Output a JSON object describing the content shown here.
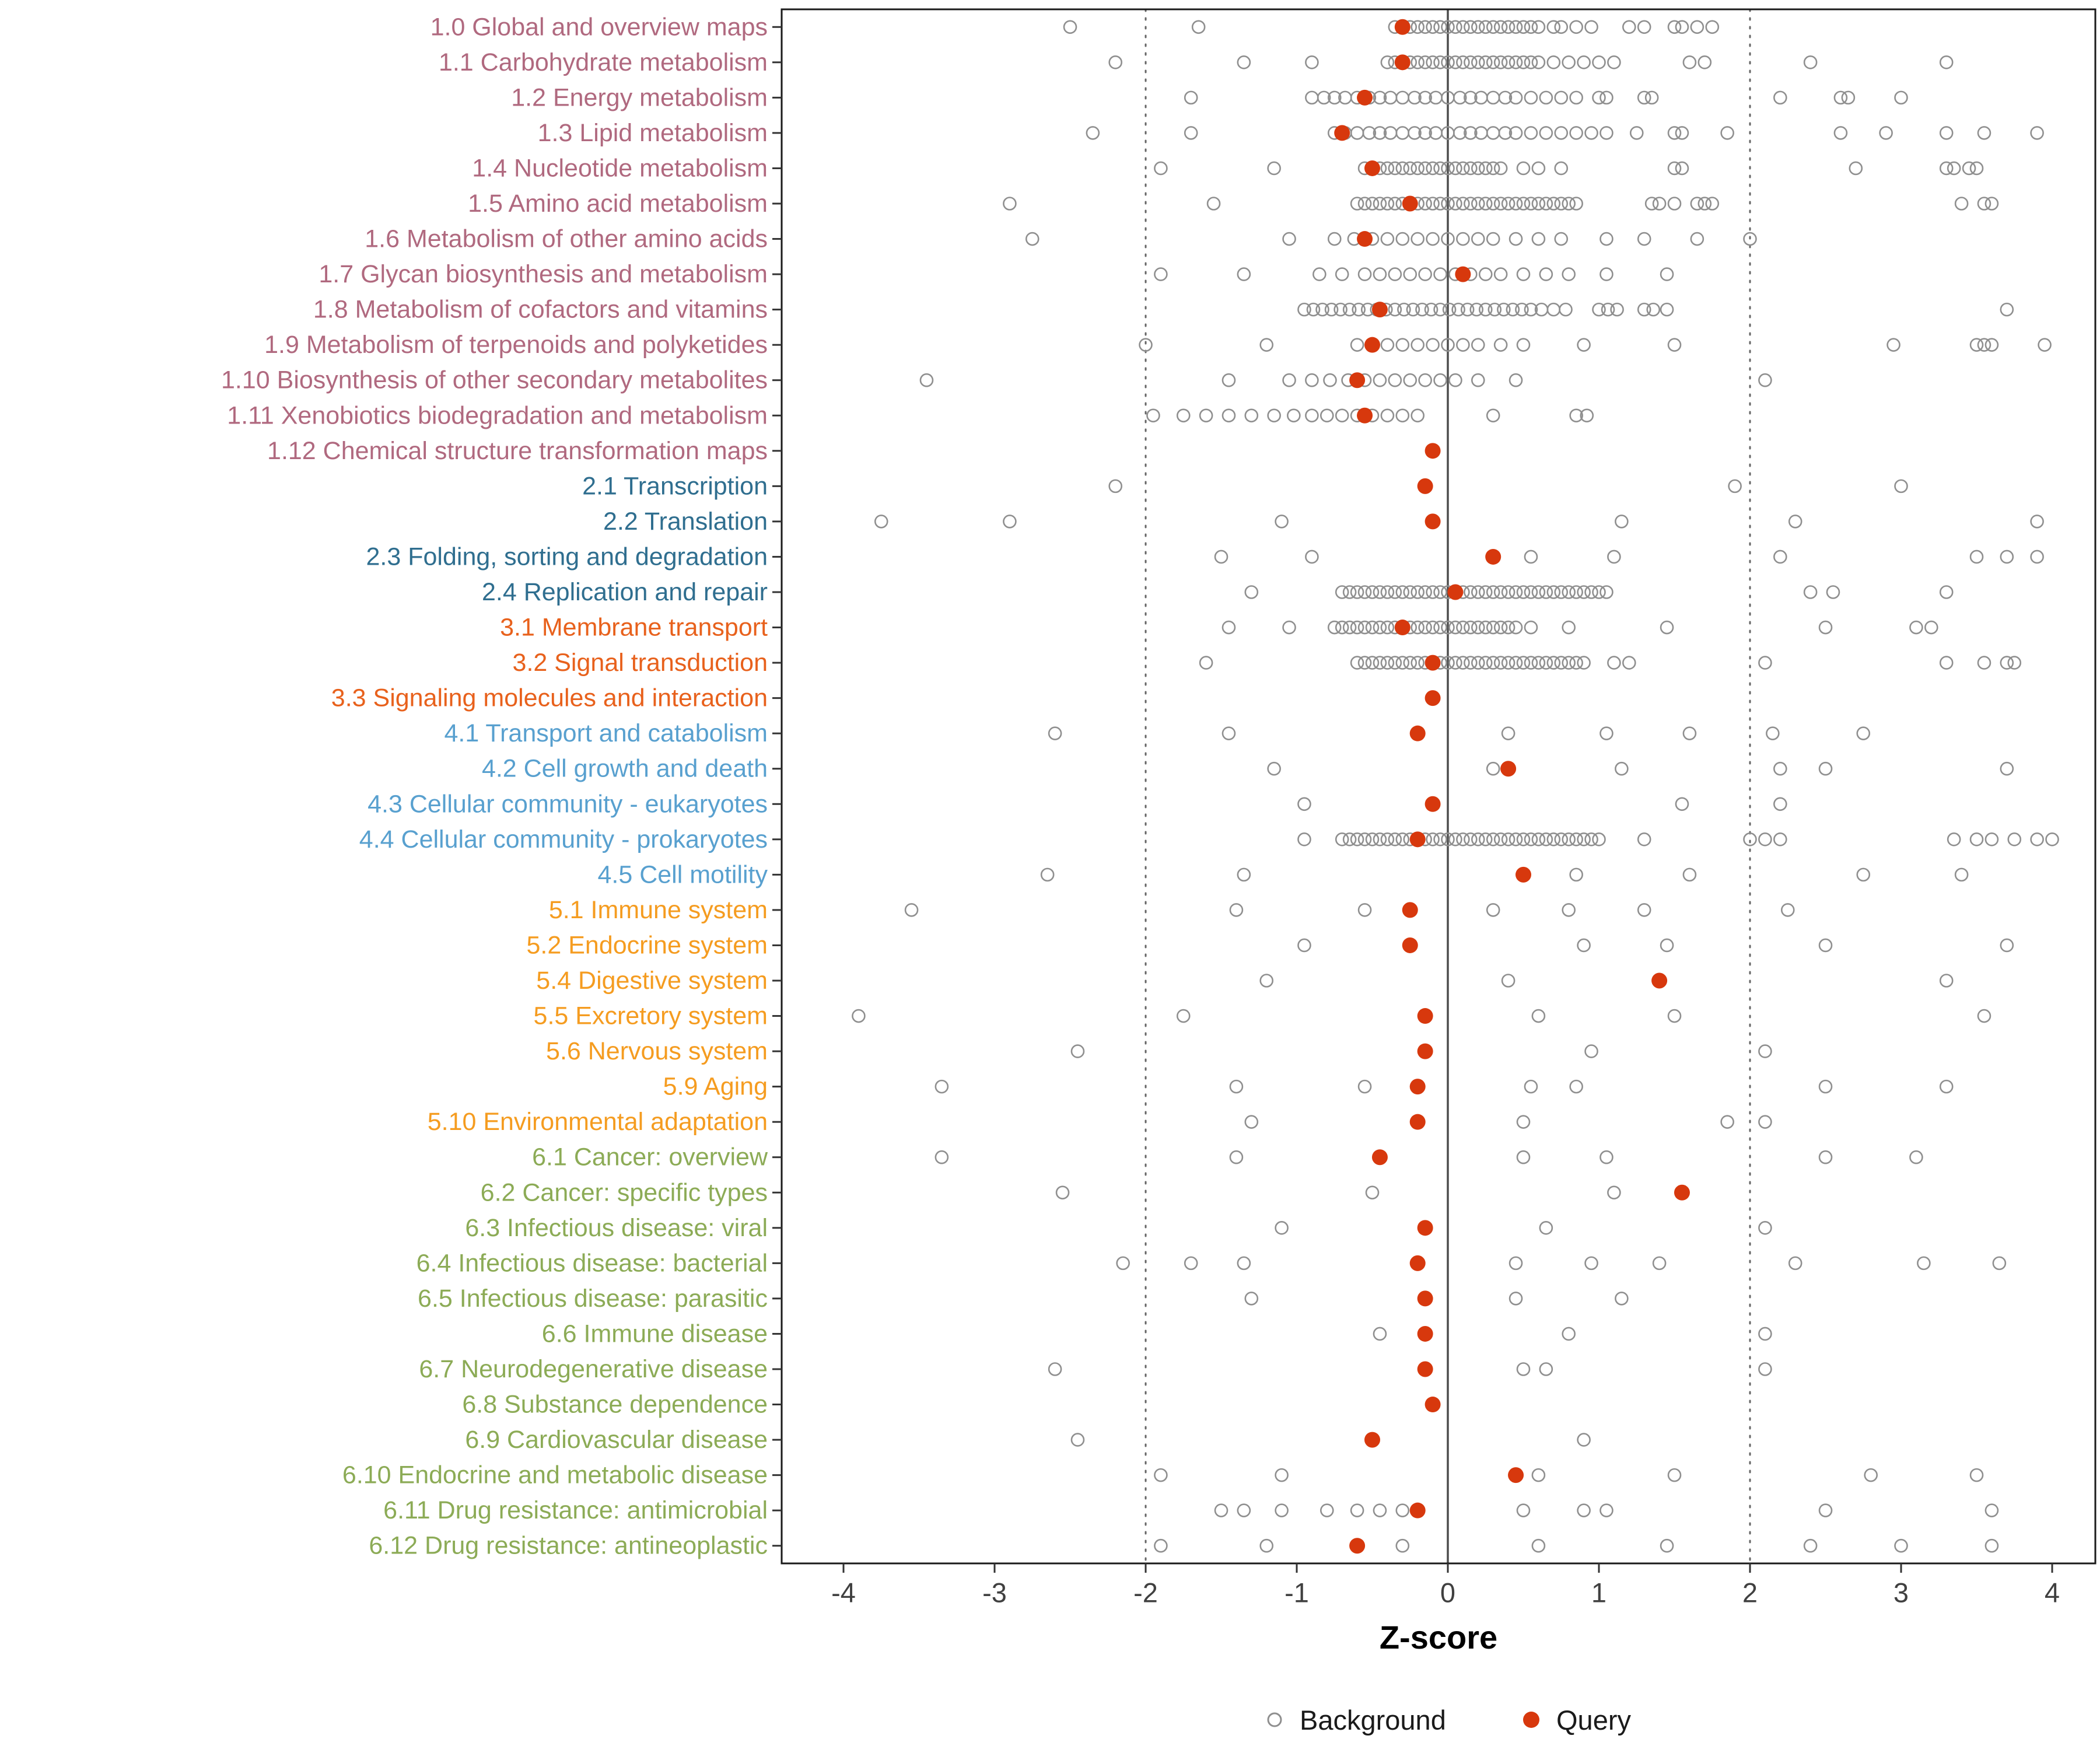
{
  "chart_data": {
    "type": "scatter",
    "title": "",
    "xlabel": "Z-score",
    "xlim": [
      -4.4,
      4.3
    ],
    "x_ticks": [
      -4,
      -3,
      -2,
      -1,
      0,
      1,
      2,
      3,
      4
    ],
    "reference_lines": {
      "solid": [
        0
      ],
      "dotted": [
        -2,
        2
      ]
    },
    "legend_position": "bottom",
    "grid": false,
    "colors": {
      "background_point": "#8f8f8f",
      "query_point": "#d7380d",
      "panel_border": "#1a1a1a",
      "tick_text": "#404040",
      "ref_solid": "#4d4d4d",
      "ref_dotted": "#666666"
    },
    "group_colors": {
      "1": "#b0697f",
      "2": "#2f6e8f",
      "3": "#e8611c",
      "4": "#58a0cf",
      "5": "#f59c20",
      "6": "#8cab56"
    },
    "legend": [
      {
        "label": "Background",
        "marker": "open-circle",
        "color": "#8f8f8f"
      },
      {
        "label": "Query",
        "marker": "filled-circle",
        "color": "#d7380d"
      }
    ],
    "categories": [
      {
        "label": "1.0 Global and overview maps",
        "group": "1",
        "query": -0.3,
        "background": [
          -2.5,
          -1.65,
          -0.35,
          -0.3,
          -0.25,
          -0.2,
          -0.15,
          -0.1,
          -0.05,
          0,
          0.05,
          0.1,
          0.15,
          0.2,
          0.25,
          0.3,
          0.35,
          0.4,
          0.45,
          0.5,
          0.55,
          0.6,
          0.7,
          0.75,
          0.85,
          0.95,
          1.2,
          1.3,
          1.5,
          1.55,
          1.65,
          1.75
        ]
      },
      {
        "label": "1.1 Carbohydrate metabolism",
        "group": "1",
        "query": -0.3,
        "background": [
          -2.2,
          -1.35,
          -0.9,
          -0.4,
          -0.35,
          -0.3,
          -0.25,
          -0.2,
          -0.15,
          -0.1,
          -0.05,
          0,
          0.05,
          0.1,
          0.15,
          0.2,
          0.25,
          0.3,
          0.35,
          0.4,
          0.45,
          0.5,
          0.55,
          0.6,
          0.7,
          0.8,
          0.9,
          1.0,
          1.1,
          1.6,
          1.7,
          2.4,
          3.3
        ]
      },
      {
        "label": "1.2 Energy metabolism",
        "group": "1",
        "query": -0.55,
        "background": [
          -1.7,
          -0.9,
          -0.82,
          -0.75,
          -0.68,
          -0.6,
          -0.52,
          -0.45,
          -0.38,
          -0.3,
          -0.22,
          -0.15,
          -0.08,
          0,
          0.08,
          0.15,
          0.22,
          0.3,
          0.38,
          0.45,
          0.55,
          0.65,
          0.75,
          0.85,
          1.0,
          1.05,
          1.3,
          1.35,
          2.2,
          2.6,
          2.65,
          3.0
        ]
      },
      {
        "label": "1.3 Lipid metabolism",
        "group": "1",
        "query": -0.7,
        "background": [
          -2.35,
          -1.7,
          -0.75,
          -0.68,
          -0.6,
          -0.52,
          -0.45,
          -0.38,
          -0.3,
          -0.22,
          -0.15,
          -0.08,
          0,
          0.08,
          0.15,
          0.22,
          0.3,
          0.38,
          0.45,
          0.55,
          0.65,
          0.75,
          0.85,
          0.95,
          1.05,
          1.25,
          1.5,
          1.55,
          1.85,
          2.6,
          2.9,
          3.3,
          3.55,
          3.9
        ]
      },
      {
        "label": "1.4 Nucleotide metabolism",
        "group": "1",
        "query": -0.5,
        "background": [
          -1.9,
          -1.15,
          -0.55,
          -0.5,
          -0.45,
          -0.4,
          -0.35,
          -0.3,
          -0.25,
          -0.2,
          -0.15,
          -0.1,
          -0.05,
          0,
          0.05,
          0.1,
          0.15,
          0.2,
          0.25,
          0.3,
          0.35,
          0.5,
          0.6,
          0.75,
          1.5,
          1.55,
          2.7,
          3.3,
          3.35,
          3.45,
          3.5
        ]
      },
      {
        "label": "1.5 Amino acid metabolism",
        "group": "1",
        "query": -0.25,
        "background": [
          -2.9,
          -1.55,
          -0.6,
          -0.55,
          -0.5,
          -0.45,
          -0.4,
          -0.35,
          -0.3,
          -0.25,
          -0.2,
          -0.15,
          -0.1,
          -0.05,
          0,
          0.05,
          0.1,
          0.15,
          0.2,
          0.25,
          0.3,
          0.35,
          0.4,
          0.45,
          0.5,
          0.55,
          0.6,
          0.65,
          0.7,
          0.75,
          0.8,
          0.85,
          1.35,
          1.4,
          1.5,
          1.65,
          1.7,
          1.75,
          3.4,
          3.55,
          3.6
        ]
      },
      {
        "label": "1.6 Metabolism of other amino acids",
        "group": "1",
        "query": -0.55,
        "background": [
          -2.75,
          -1.05,
          -0.75,
          -0.62,
          -0.5,
          -0.4,
          -0.3,
          -0.2,
          -0.1,
          0,
          0.1,
          0.2,
          0.3,
          0.45,
          0.6,
          0.75,
          1.05,
          1.3,
          1.65,
          2.0
        ]
      },
      {
        "label": "1.7 Glycan biosynthesis and metabolism",
        "group": "1",
        "query": 0.1,
        "background": [
          -1.9,
          -1.35,
          -0.85,
          -0.7,
          -0.55,
          -0.45,
          -0.35,
          -0.25,
          -0.15,
          -0.05,
          0.05,
          0.15,
          0.25,
          0.35,
          0.5,
          0.65,
          0.8,
          1.05,
          1.45
        ]
      },
      {
        "label": "1.8 Metabolism of cofactors and vitamins",
        "group": "1",
        "query": -0.45,
        "background": [
          -0.95,
          -0.89,
          -0.83,
          -0.77,
          -0.71,
          -0.65,
          -0.59,
          -0.53,
          -0.47,
          -0.41,
          -0.35,
          -0.29,
          -0.23,
          -0.17,
          -0.11,
          -0.05,
          0.01,
          0.07,
          0.13,
          0.19,
          0.25,
          0.31,
          0.37,
          0.43,
          0.49,
          0.55,
          0.62,
          0.7,
          0.78,
          1.0,
          1.06,
          1.12,
          1.3,
          1.36,
          1.45,
          3.7
        ]
      },
      {
        "label": "1.9 Metabolism of terpenoids and polyketides",
        "group": "1",
        "query": -0.5,
        "background": [
          -2.0,
          -1.2,
          -0.6,
          -0.5,
          -0.4,
          -0.3,
          -0.2,
          -0.1,
          0,
          0.1,
          0.2,
          0.35,
          0.5,
          0.9,
          1.5,
          2.95,
          3.5,
          3.55,
          3.6,
          3.95
        ]
      },
      {
        "label": "1.10 Biosynthesis of other secondary metabolites",
        "group": "1",
        "query": -0.6,
        "background": [
          -3.45,
          -1.45,
          -1.05,
          -0.9,
          -0.78,
          -0.66,
          -0.55,
          -0.45,
          -0.35,
          -0.25,
          -0.15,
          -0.05,
          0.05,
          0.2,
          0.45,
          2.1
        ]
      },
      {
        "label": "1.11 Xenobiotics biodegradation and metabolism",
        "group": "1",
        "query": -0.55,
        "background": [
          -1.95,
          -1.75,
          -1.6,
          -1.45,
          -1.3,
          -1.15,
          -1.02,
          -0.9,
          -0.8,
          -0.7,
          -0.6,
          -0.5,
          -0.4,
          -0.3,
          -0.2,
          0.3,
          0.85,
          0.92
        ]
      },
      {
        "label": "1.12 Chemical structure transformation maps",
        "group": "1",
        "query": -0.1,
        "background": []
      },
      {
        "label": "2.1 Transcription",
        "group": "2",
        "query": -0.15,
        "background": [
          -2.2,
          1.9,
          3.0
        ]
      },
      {
        "label": "2.2 Translation",
        "group": "2",
        "query": -0.1,
        "background": [
          -3.75,
          -2.9,
          -1.1,
          1.15,
          2.3,
          3.9
        ]
      },
      {
        "label": "2.3 Folding, sorting and degradation",
        "group": "2",
        "query": 0.3,
        "background": [
          -1.5,
          -0.9,
          0.55,
          1.1,
          2.2,
          3.5,
          3.7,
          3.9
        ]
      },
      {
        "label": "2.4 Replication and repair",
        "group": "2",
        "query": 0.05,
        "background": [
          -1.3,
          -0.7,
          -0.65,
          -0.6,
          -0.55,
          -0.5,
          -0.45,
          -0.4,
          -0.35,
          -0.3,
          -0.25,
          -0.2,
          -0.15,
          -0.1,
          -0.05,
          0,
          0.05,
          0.1,
          0.15,
          0.2,
          0.25,
          0.3,
          0.35,
          0.4,
          0.45,
          0.5,
          0.55,
          0.6,
          0.65,
          0.7,
          0.75,
          0.8,
          0.85,
          0.9,
          0.95,
          1.0,
          1.05,
          2.4,
          2.55,
          3.3
        ]
      },
      {
        "label": "3.1 Membrane transport",
        "group": "3",
        "query": -0.3,
        "background": [
          -1.45,
          -1.05,
          -0.75,
          -0.7,
          -0.65,
          -0.6,
          -0.55,
          -0.5,
          -0.45,
          -0.4,
          -0.35,
          -0.3,
          -0.25,
          -0.2,
          -0.15,
          -0.1,
          -0.05,
          0,
          0.05,
          0.1,
          0.15,
          0.2,
          0.25,
          0.3,
          0.35,
          0.4,
          0.45,
          0.55,
          0.8,
          1.45,
          2.5,
          3.1,
          3.2
        ]
      },
      {
        "label": "3.2 Signal transduction",
        "group": "3",
        "query": -0.1,
        "background": [
          -1.6,
          -0.6,
          -0.55,
          -0.5,
          -0.45,
          -0.4,
          -0.35,
          -0.3,
          -0.25,
          -0.2,
          -0.15,
          -0.1,
          -0.05,
          0,
          0.05,
          0.1,
          0.15,
          0.2,
          0.25,
          0.3,
          0.35,
          0.4,
          0.45,
          0.5,
          0.55,
          0.6,
          0.65,
          0.7,
          0.75,
          0.8,
          0.85,
          0.9,
          1.1,
          1.2,
          2.1,
          3.3,
          3.55,
          3.7,
          3.75
        ]
      },
      {
        "label": "3.3 Signaling molecules and interaction",
        "group": "3",
        "query": -0.1,
        "background": []
      },
      {
        "label": "4.1 Transport and catabolism",
        "group": "4",
        "query": -0.2,
        "background": [
          -2.6,
          -1.45,
          0.4,
          1.05,
          1.6,
          2.15,
          2.75
        ]
      },
      {
        "label": "4.2 Cell growth and death",
        "group": "4",
        "query": 0.4,
        "background": [
          -1.15,
          0.3,
          1.15,
          2.2,
          2.5,
          3.7
        ]
      },
      {
        "label": "4.3 Cellular community - eukaryotes",
        "group": "4",
        "query": -0.1,
        "background": [
          -0.95,
          1.55,
          2.2
        ]
      },
      {
        "label": "4.4 Cellular community - prokaryotes",
        "group": "4",
        "query": -0.2,
        "background": [
          -0.95,
          -0.7,
          -0.65,
          -0.6,
          -0.55,
          -0.5,
          -0.45,
          -0.4,
          -0.35,
          -0.3,
          -0.25,
          -0.2,
          -0.15,
          -0.1,
          -0.05,
          0,
          0.05,
          0.1,
          0.15,
          0.2,
          0.25,
          0.3,
          0.35,
          0.4,
          0.45,
          0.5,
          0.55,
          0.6,
          0.65,
          0.7,
          0.75,
          0.8,
          0.85,
          0.9,
          0.95,
          1.0,
          1.3,
          2.0,
          2.1,
          2.2,
          3.35,
          3.5,
          3.6,
          3.75,
          3.9,
          4.0
        ]
      },
      {
        "label": "4.5 Cell motility",
        "group": "4",
        "query": 0.5,
        "background": [
          -2.65,
          -1.35,
          0.85,
          1.6,
          2.75,
          3.4
        ]
      },
      {
        "label": "5.1 Immune system",
        "group": "5",
        "query": -0.25,
        "background": [
          -3.55,
          -1.4,
          -0.55,
          0.3,
          0.8,
          1.3,
          2.25
        ]
      },
      {
        "label": "5.2 Endocrine system",
        "group": "5",
        "query": -0.25,
        "background": [
          -0.95,
          0.9,
          1.45,
          2.5,
          3.7
        ]
      },
      {
        "label": "5.4 Digestive system",
        "group": "5",
        "query": 1.4,
        "background": [
          -1.2,
          0.4,
          3.3
        ]
      },
      {
        "label": "5.5 Excretory system",
        "group": "5",
        "query": -0.15,
        "background": [
          -3.9,
          -1.75,
          0.6,
          1.5,
          3.55
        ]
      },
      {
        "label": "5.6 Nervous system",
        "group": "5",
        "query": -0.15,
        "background": [
          -2.45,
          0.95,
          2.1
        ]
      },
      {
        "label": "5.9 Aging",
        "group": "5",
        "query": -0.2,
        "background": [
          -3.35,
          -1.4,
          -0.55,
          0.55,
          0.85,
          2.5,
          3.3
        ]
      },
      {
        "label": "5.10 Environmental adaptation",
        "group": "5",
        "query": -0.2,
        "background": [
          -1.3,
          0.5,
          1.85,
          2.1
        ]
      },
      {
        "label": "6.1 Cancer: overview",
        "group": "6",
        "query": -0.45,
        "background": [
          -3.35,
          -1.4,
          0.5,
          1.05,
          2.5,
          3.1
        ]
      },
      {
        "label": "6.2 Cancer: specific types",
        "group": "6",
        "query": 1.55,
        "background": [
          -2.55,
          -0.5,
          1.1
        ]
      },
      {
        "label": "6.3 Infectious disease: viral",
        "group": "6",
        "query": -0.15,
        "background": [
          -1.1,
          0.65,
          2.1
        ]
      },
      {
        "label": "6.4 Infectious disease: bacterial",
        "group": "6",
        "query": -0.2,
        "background": [
          -2.15,
          -1.7,
          -1.35,
          0.45,
          0.95,
          1.4,
          2.3,
          3.15,
          3.65
        ]
      },
      {
        "label": "6.5 Infectious disease: parasitic",
        "group": "6",
        "query": -0.15,
        "background": [
          -1.3,
          0.45,
          1.15
        ]
      },
      {
        "label": "6.6 Immune disease",
        "group": "6",
        "query": -0.15,
        "background": [
          -0.45,
          0.8,
          2.1
        ]
      },
      {
        "label": "6.7 Neurodegenerative disease",
        "group": "6",
        "query": -0.15,
        "background": [
          -2.6,
          0.5,
          0.65,
          2.1
        ]
      },
      {
        "label": "6.8 Substance dependence",
        "group": "6",
        "query": -0.1,
        "background": []
      },
      {
        "label": "6.9 Cardiovascular disease",
        "group": "6",
        "query": -0.5,
        "background": [
          -2.45,
          0.9
        ]
      },
      {
        "label": "6.10 Endocrine and metabolic disease",
        "group": "6",
        "query": 0.45,
        "background": [
          -1.9,
          -1.1,
          0.6,
          1.5,
          2.8,
          3.5
        ]
      },
      {
        "label": "6.11 Drug resistance: antimicrobial",
        "group": "6",
        "query": -0.2,
        "background": [
          -1.5,
          -1.35,
          -1.1,
          -0.8,
          -0.6,
          -0.45,
          -0.3,
          0.5,
          0.9,
          1.05,
          2.5,
          3.6
        ]
      },
      {
        "label": "6.12 Drug resistance: antineoplastic",
        "group": "6",
        "query": -0.6,
        "background": [
          -1.9,
          -1.2,
          -0.3,
          0.6,
          1.45,
          2.4,
          3.0,
          3.6
        ]
      }
    ]
  }
}
